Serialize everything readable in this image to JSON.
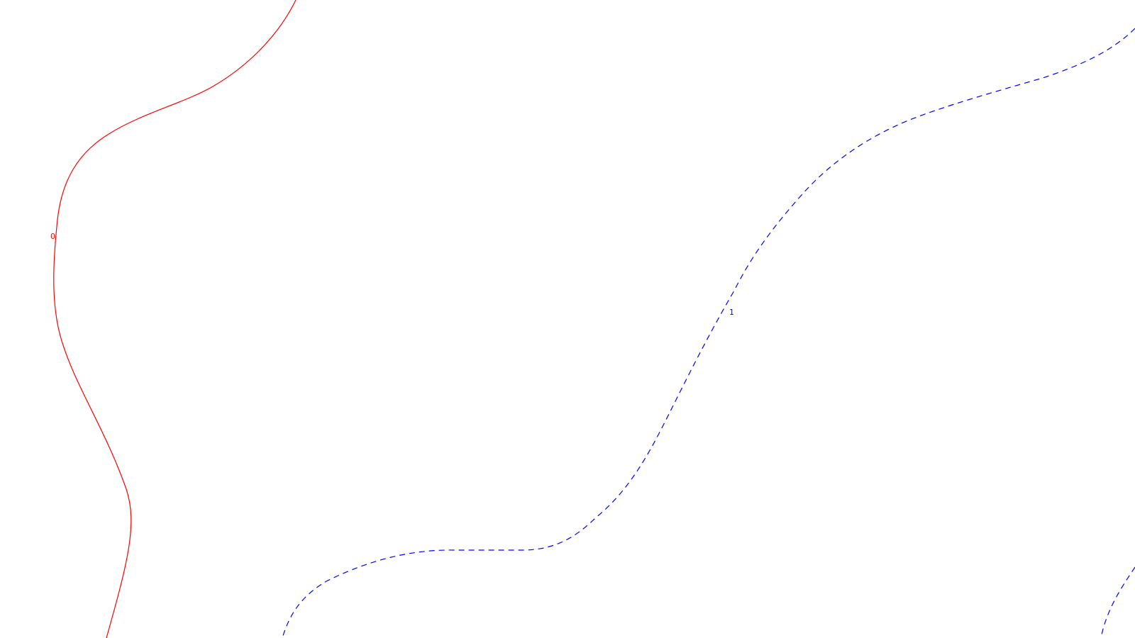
{
  "contours": [
    {
      "id": "contour-0",
      "label": "0",
      "color": "#ff0000",
      "line_style": "solid"
    },
    {
      "id": "contour-1",
      "label": "1",
      "color": "#0000ff",
      "line_style": "dashed"
    },
    {
      "id": "contour-1-corner",
      "label": "",
      "color": "#0000ff",
      "line_style": "dashed"
    }
  ]
}
